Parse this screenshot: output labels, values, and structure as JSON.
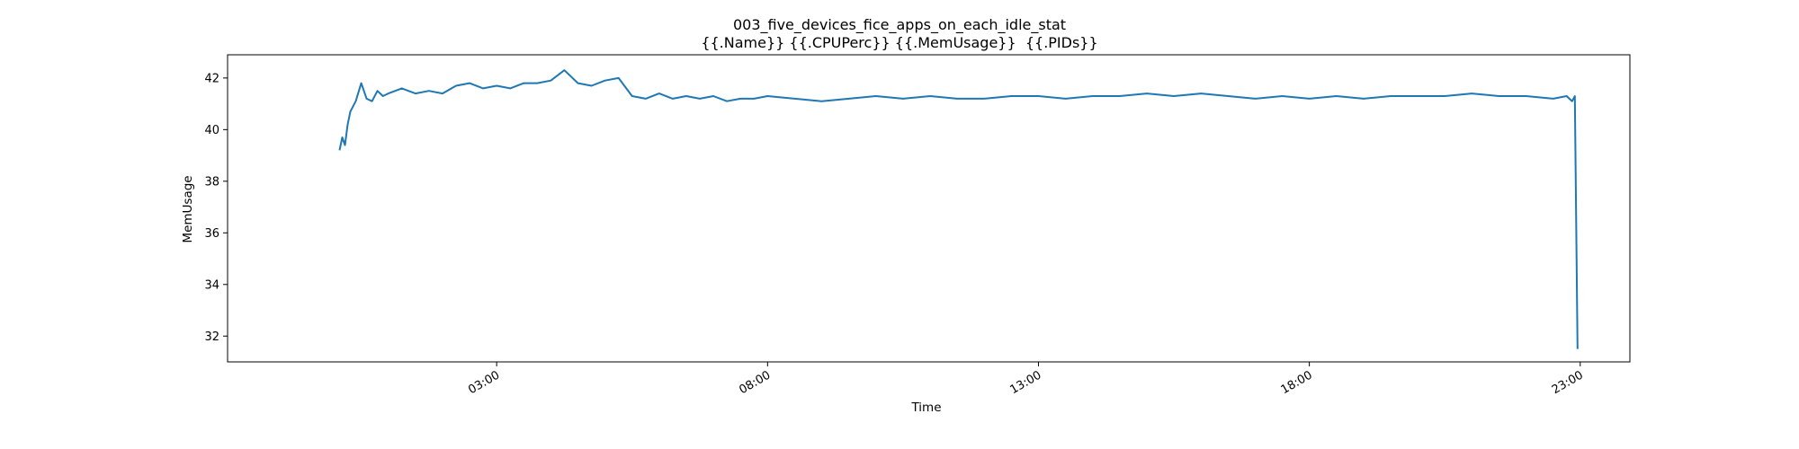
{
  "chart_data": {
    "type": "line",
    "title": "003_five_devices_fice_apps_on_each_idle_stat",
    "subtitle": "{{.Name}} {{.CPUPerc}} {{.MemUsage}}  {{.PIDs}}",
    "xlabel": "Time",
    "ylabel": "MemUsage",
    "xlim": [
      "2024-01-01 22:02",
      "2024-01-02 23:55"
    ],
    "ylim": [
      31.0,
      42.9
    ],
    "x_ticks": [
      "03:00",
      "08:00",
      "13:00",
      "18:00",
      "23:00"
    ],
    "y_ticks": [
      32,
      34,
      36,
      38,
      40,
      42
    ],
    "grid": false,
    "legend": "none",
    "color": "#1f77b4",
    "series": [
      {
        "x": [
          "2024-01-02 00:06",
          "2024-01-02 00:09",
          "2024-01-02 00:12",
          "2024-01-02 00:15",
          "2024-01-02 00:18",
          "2024-01-02 00:24",
          "2024-01-02 00:30",
          "2024-01-02 00:36",
          "2024-01-02 00:42",
          "2024-01-02 00:48",
          "2024-01-02 00:54",
          "2024-01-02 01:00",
          "2024-01-02 01:15",
          "2024-01-02 01:30",
          "2024-01-02 01:45",
          "2024-01-02 02:00",
          "2024-01-02 02:15",
          "2024-01-02 02:30",
          "2024-01-02 02:45",
          "2024-01-02 03:00",
          "2024-01-02 03:15",
          "2024-01-02 03:30",
          "2024-01-02 03:45",
          "2024-01-02 04:00",
          "2024-01-02 04:15",
          "2024-01-02 04:30",
          "2024-01-02 04:45",
          "2024-01-02 05:00",
          "2024-01-02 05:15",
          "2024-01-02 05:30",
          "2024-01-02 05:45",
          "2024-01-02 06:00",
          "2024-01-02 06:15",
          "2024-01-02 06:30",
          "2024-01-02 06:45",
          "2024-01-02 07:00",
          "2024-01-02 07:15",
          "2024-01-02 07:30",
          "2024-01-02 07:45",
          "2024-01-02 08:00",
          "2024-01-02 08:30",
          "2024-01-02 09:00",
          "2024-01-02 09:30",
          "2024-01-02 10:00",
          "2024-01-02 10:30",
          "2024-01-02 11:00",
          "2024-01-02 11:30",
          "2024-01-02 12:00",
          "2024-01-02 12:30",
          "2024-01-02 13:00",
          "2024-01-02 13:30",
          "2024-01-02 14:00",
          "2024-01-02 14:30",
          "2024-01-02 15:00",
          "2024-01-02 15:30",
          "2024-01-02 16:00",
          "2024-01-02 16:30",
          "2024-01-02 17:00",
          "2024-01-02 17:30",
          "2024-01-02 18:00",
          "2024-01-02 18:30",
          "2024-01-02 19:00",
          "2024-01-02 19:30",
          "2024-01-02 20:00",
          "2024-01-02 20:30",
          "2024-01-02 21:00",
          "2024-01-02 21:30",
          "2024-01-02 22:00",
          "2024-01-02 22:30",
          "2024-01-02 22:45",
          "2024-01-02 22:48",
          "2024-01-02 22:51",
          "2024-01-02 22:54",
          "2024-01-02 22:57"
        ],
        "y": [
          39.2,
          39.7,
          39.4,
          40.2,
          40.7,
          41.1,
          41.8,
          41.2,
          41.1,
          41.5,
          41.3,
          41.4,
          41.6,
          41.4,
          41.5,
          41.4,
          41.7,
          41.8,
          41.6,
          41.7,
          41.6,
          41.8,
          41.8,
          41.9,
          42.3,
          41.8,
          41.7,
          41.9,
          42.0,
          41.3,
          41.2,
          41.4,
          41.2,
          41.3,
          41.2,
          41.3,
          41.1,
          41.2,
          41.2,
          41.3,
          41.2,
          41.1,
          41.2,
          41.3,
          41.2,
          41.3,
          41.2,
          41.2,
          41.3,
          41.3,
          41.2,
          41.3,
          41.3,
          41.4,
          41.3,
          41.4,
          41.3,
          41.2,
          41.3,
          41.2,
          41.3,
          41.2,
          41.3,
          41.3,
          41.3,
          41.4,
          41.3,
          41.3,
          41.2,
          41.3,
          41.2,
          41.1,
          41.3,
          31.5
        ]
      }
    ]
  }
}
